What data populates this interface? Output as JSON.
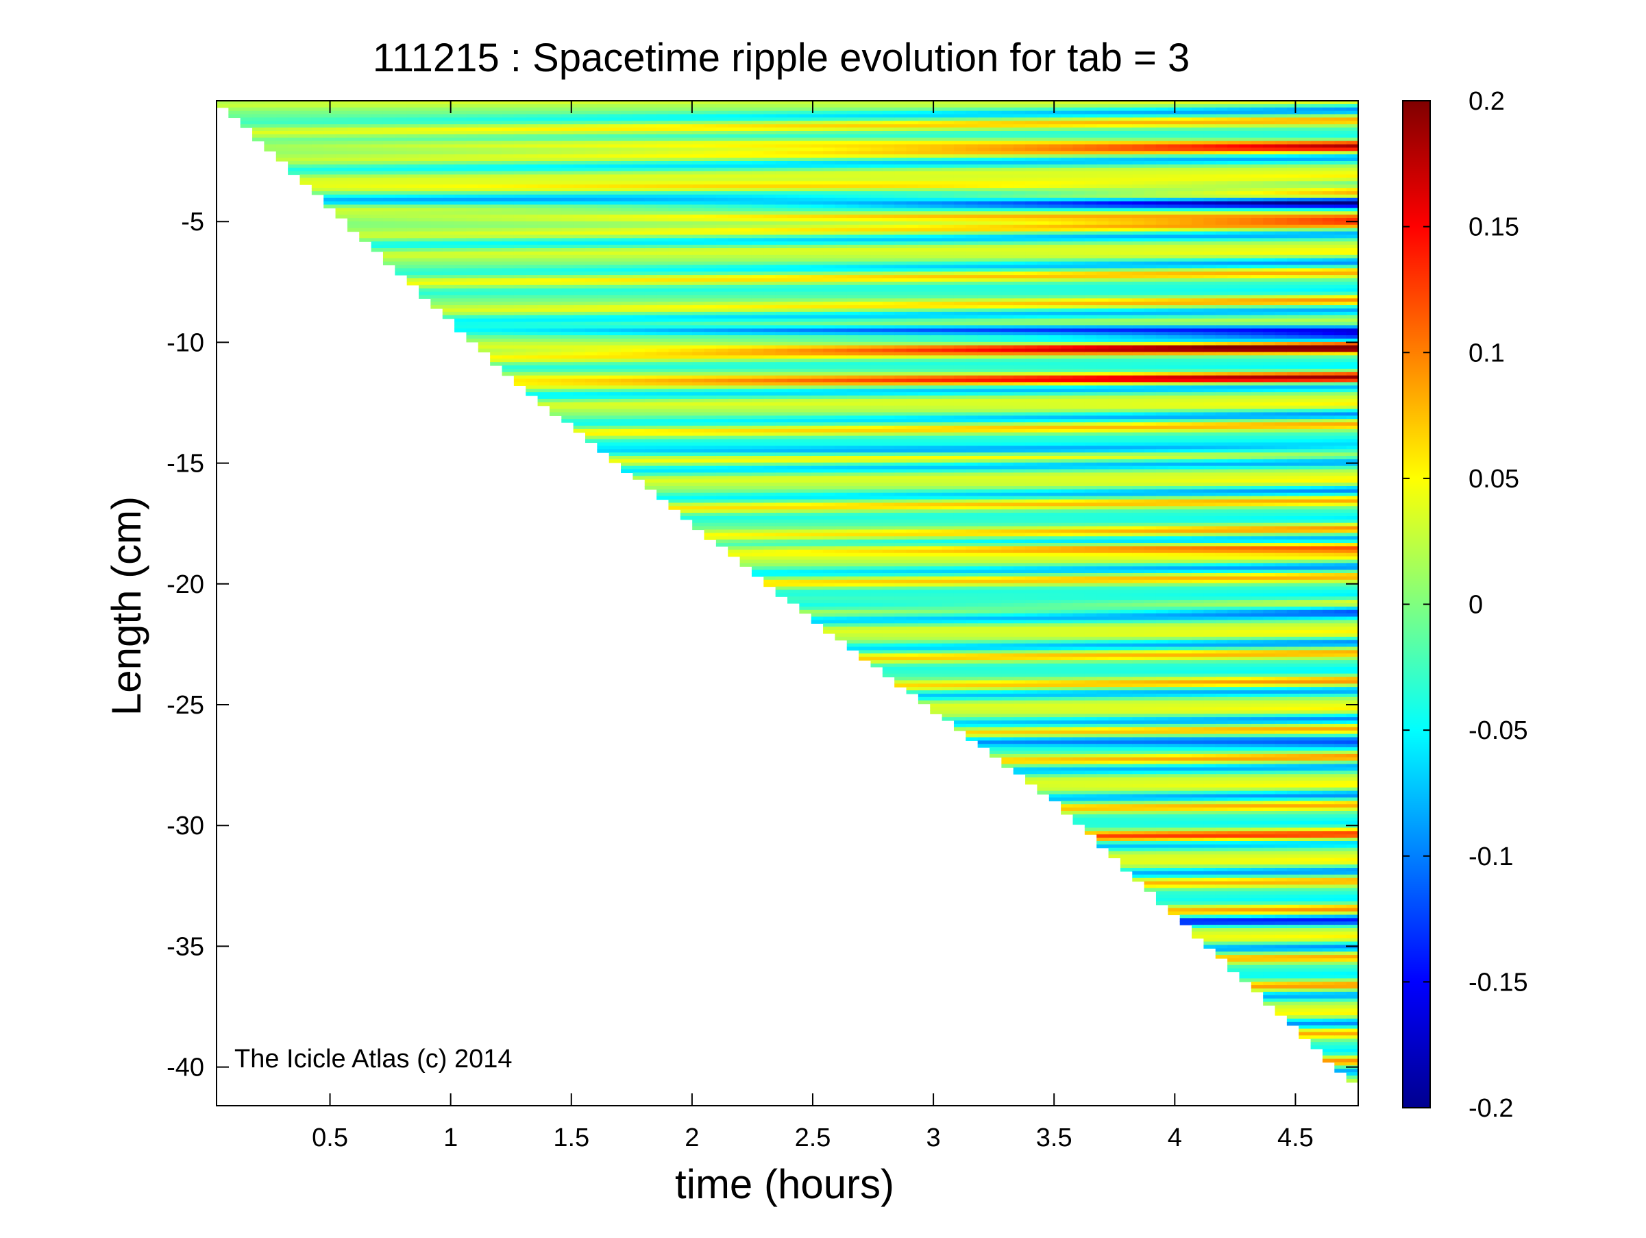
{
  "chart_data": {
    "type": "heatmap",
    "title": "111215 : Spacetime ripple evolution for tab = 3",
    "xlabel": "time (hours)",
    "ylabel": "Length (cm)",
    "xlim": [
      0.03,
      4.76
    ],
    "ylim": [
      -41.6,
      0.0
    ],
    "xticks": [
      0.5,
      1,
      1.5,
      2,
      2.5,
      3,
      3.5,
      4,
      4.5
    ],
    "xtick_labels": [
      "0.5",
      "1",
      "1.5",
      "2",
      "2.5",
      "3",
      "3.5",
      "4",
      "4.5"
    ],
    "yticks": [
      -5,
      -10,
      -15,
      -20,
      -25,
      -30,
      -35,
      -40
    ],
    "ytick_labels": [
      "-5",
      "-10",
      "-15",
      "-20",
      "-25",
      "-30",
      "-35",
      "-40"
    ],
    "colorbar": {
      "colormap": "jet",
      "clim": [
        -0.2,
        0.2
      ],
      "ticks": [
        0.2,
        0.15,
        0.1,
        0.05,
        0,
        -0.05,
        -0.1,
        -0.15,
        -0.2
      ],
      "tick_labels": [
        "0.2",
        "0.15",
        "0.1",
        "0.05",
        "0",
        "-0.05",
        "-0.1",
        "-0.15",
        "-0.2"
      ]
    },
    "growth_front": {
      "description_points": [
        [
          0.03,
          0.0
        ],
        [
          1.25,
          -11.5
        ],
        [
          2.5,
          -21.5
        ],
        [
          3.5,
          -29.0
        ],
        [
          4.75,
          -40.8
        ]
      ]
    },
    "grid": false,
    "annotation": "The Icicle Atlas (c) 2014"
  }
}
